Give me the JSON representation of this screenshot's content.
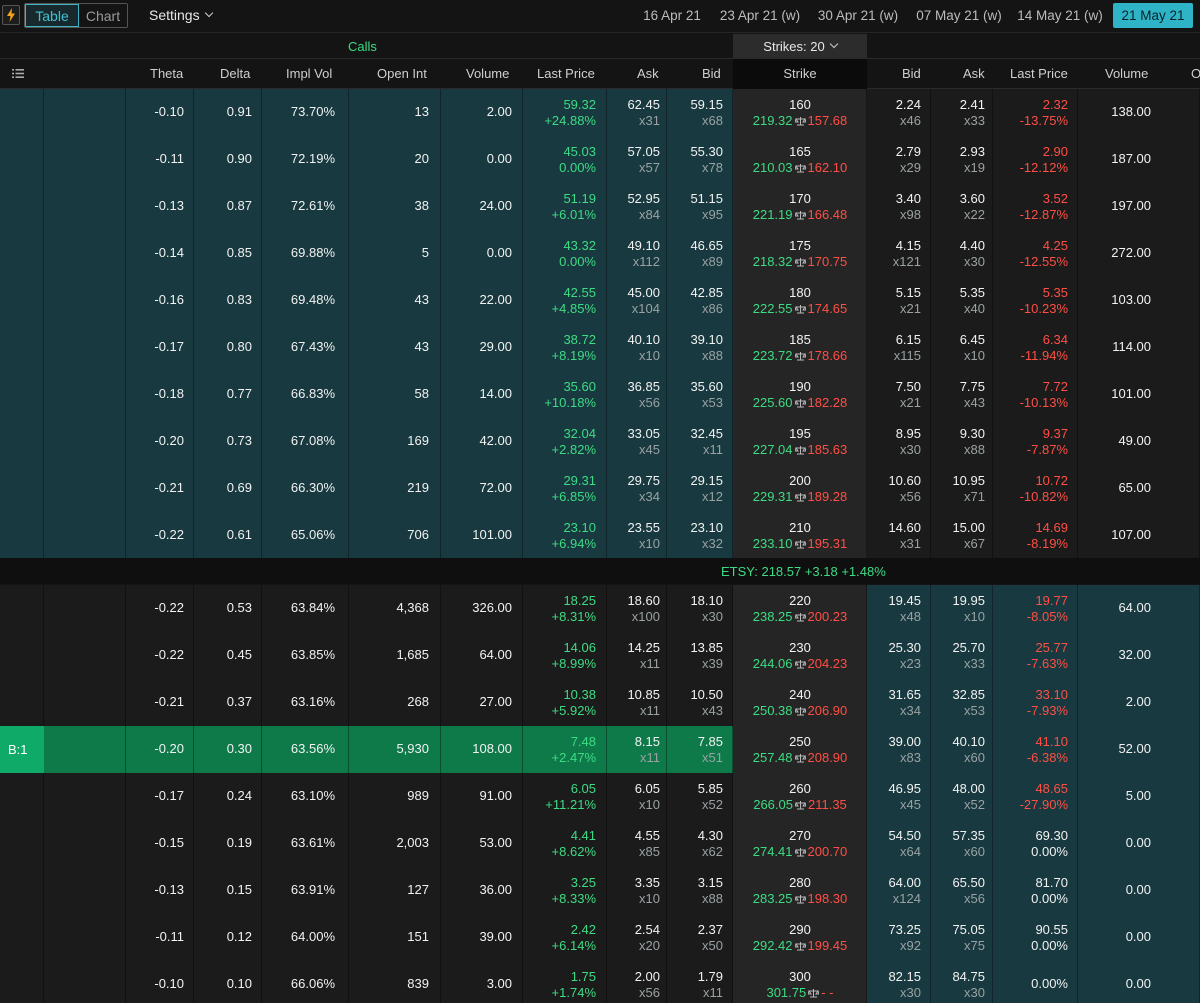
{
  "toolbar": {
    "tab_table": "Table",
    "tab_chart": "Chart",
    "settings_label": "Settings",
    "expirations": [
      "16 Apr 21",
      "23 Apr 21 (w)",
      "30 Apr 21 (w)",
      "07 May 21 (w)",
      "14 May 21 (w)",
      "21 May 21"
    ],
    "active_expiration": "21 May 21"
  },
  "chain": {
    "calls_label": "Calls",
    "strikes_label": "Strikes: 20",
    "columns": {
      "theta": "Theta",
      "delta": "Delta",
      "impl_vol": "Impl Vol",
      "open_int": "Open Int",
      "volume": "Volume",
      "last_price": "Last Price",
      "ask": "Ask",
      "bid": "Bid",
      "strike": "Strike",
      "put_bid": "Bid",
      "put_ask": "Ask",
      "put_last": "Last Price",
      "put_volume": "Volume",
      "overflow": "O"
    },
    "underlying": "ETSY:  218.57 +3.18 +1.48%",
    "selected_badge": "B:1",
    "rows": [
      {
        "theta": "-0.10",
        "delta": "0.91",
        "iv": "73.70%",
        "oi": "13",
        "vol": "2.00",
        "last": "59.32",
        "chg": "+24.88%",
        "ask": "62.45",
        "ask_sz": "x31",
        "bid": "59.15",
        "bid_sz": "x68",
        "strike": "160",
        "be_call": "219.32",
        "be_put": "157.68",
        "pbid": "2.24",
        "pbid_sz": "x46",
        "pask": "2.41",
        "pask_sz": "x33",
        "plast": "2.32",
        "pchg": "-13.75%",
        "pvol": "138.00"
      },
      {
        "theta": "-0.11",
        "delta": "0.90",
        "iv": "72.19%",
        "oi": "20",
        "vol": "0.00",
        "last": "45.03",
        "chg": "0.00%",
        "ask": "57.05",
        "ask_sz": "x57",
        "bid": "55.30",
        "bid_sz": "x78",
        "strike": "165",
        "be_call": "210.03",
        "be_put": "162.10",
        "pbid": "2.79",
        "pbid_sz": "x29",
        "pask": "2.93",
        "pask_sz": "x19",
        "plast": "2.90",
        "pchg": "-12.12%",
        "pvol": "187.00"
      },
      {
        "theta": "-0.13",
        "delta": "0.87",
        "iv": "72.61%",
        "oi": "38",
        "vol": "24.00",
        "last": "51.19",
        "chg": "+6.01%",
        "ask": "52.95",
        "ask_sz": "x84",
        "bid": "51.15",
        "bid_sz": "x95",
        "strike": "170",
        "be_call": "221.19",
        "be_put": "166.48",
        "pbid": "3.40",
        "pbid_sz": "x98",
        "pask": "3.60",
        "pask_sz": "x22",
        "plast": "3.52",
        "pchg": "-12.87%",
        "pvol": "197.00"
      },
      {
        "theta": "-0.14",
        "delta": "0.85",
        "iv": "69.88%",
        "oi": "5",
        "vol": "0.00",
        "last": "43.32",
        "chg": "0.00%",
        "ask": "49.10",
        "ask_sz": "x112",
        "bid": "46.65",
        "bid_sz": "x89",
        "strike": "175",
        "be_call": "218.32",
        "be_put": "170.75",
        "pbid": "4.15",
        "pbid_sz": "x121",
        "pask": "4.40",
        "pask_sz": "x30",
        "plast": "4.25",
        "pchg": "-12.55%",
        "pvol": "272.00"
      },
      {
        "theta": "-0.16",
        "delta": "0.83",
        "iv": "69.48%",
        "oi": "43",
        "vol": "22.00",
        "last": "42.55",
        "chg": "+4.85%",
        "ask": "45.00",
        "ask_sz": "x104",
        "bid": "42.85",
        "bid_sz": "x86",
        "strike": "180",
        "be_call": "222.55",
        "be_put": "174.65",
        "pbid": "5.15",
        "pbid_sz": "x21",
        "pask": "5.35",
        "pask_sz": "x40",
        "plast": "5.35",
        "pchg": "-10.23%",
        "pvol": "103.00"
      },
      {
        "theta": "-0.17",
        "delta": "0.80",
        "iv": "67.43%",
        "oi": "43",
        "vol": "29.00",
        "last": "38.72",
        "chg": "+8.19%",
        "ask": "40.10",
        "ask_sz": "x10",
        "bid": "39.10",
        "bid_sz": "x88",
        "strike": "185",
        "be_call": "223.72",
        "be_put": "178.66",
        "pbid": "6.15",
        "pbid_sz": "x115",
        "pask": "6.45",
        "pask_sz": "x10",
        "plast": "6.34",
        "pchg": "-11.94%",
        "pvol": "114.00"
      },
      {
        "theta": "-0.18",
        "delta": "0.77",
        "iv": "66.83%",
        "oi": "58",
        "vol": "14.00",
        "last": "35.60",
        "chg": "+10.18%",
        "ask": "36.85",
        "ask_sz": "x56",
        "bid": "35.60",
        "bid_sz": "x53",
        "strike": "190",
        "be_call": "225.60",
        "be_put": "182.28",
        "pbid": "7.50",
        "pbid_sz": "x21",
        "pask": "7.75",
        "pask_sz": "x43",
        "plast": "7.72",
        "pchg": "-10.13%",
        "pvol": "101.00"
      },
      {
        "theta": "-0.20",
        "delta": "0.73",
        "iv": "67.08%",
        "oi": "169",
        "vol": "42.00",
        "last": "32.04",
        "chg": "+2.82%",
        "ask": "33.05",
        "ask_sz": "x45",
        "bid": "32.45",
        "bid_sz": "x11",
        "strike": "195",
        "be_call": "227.04",
        "be_put": "185.63",
        "pbid": "8.95",
        "pbid_sz": "x30",
        "pask": "9.30",
        "pask_sz": "x88",
        "plast": "9.37",
        "pchg": "-7.87%",
        "pvol": "49.00"
      },
      {
        "theta": "-0.21",
        "delta": "0.69",
        "iv": "66.30%",
        "oi": "219",
        "vol": "72.00",
        "last": "29.31",
        "chg": "+6.85%",
        "ask": "29.75",
        "ask_sz": "x34",
        "bid": "29.15",
        "bid_sz": "x12",
        "strike": "200",
        "be_call": "229.31",
        "be_put": "189.28",
        "pbid": "10.60",
        "pbid_sz": "x56",
        "pask": "10.95",
        "pask_sz": "x71",
        "plast": "10.72",
        "pchg": "-10.82%",
        "pvol": "65.00"
      },
      {
        "theta": "-0.22",
        "delta": "0.61",
        "iv": "65.06%",
        "oi": "706",
        "vol": "101.00",
        "last": "23.10",
        "chg": "+6.94%",
        "ask": "23.55",
        "ask_sz": "x10",
        "bid": "23.10",
        "bid_sz": "x32",
        "strike": "210",
        "be_call": "233.10",
        "be_put": "195.31",
        "pbid": "14.60",
        "pbid_sz": "x31",
        "pask": "15.00",
        "pask_sz": "x67",
        "plast": "14.69",
        "pchg": "-8.19%",
        "pvol": "107.00"
      },
      {
        "theta": "-0.22",
        "delta": "0.53",
        "iv": "63.84%",
        "oi": "4,368",
        "vol": "326.00",
        "last": "18.25",
        "chg": "+8.31%",
        "ask": "18.60",
        "ask_sz": "x100",
        "bid": "18.10",
        "bid_sz": "x30",
        "strike": "220",
        "be_call": "238.25",
        "be_put": "200.23",
        "pbid": "19.45",
        "pbid_sz": "x48",
        "pask": "19.95",
        "pask_sz": "x10",
        "plast": "19.77",
        "pchg": "-8.05%",
        "pvol": "64.00"
      },
      {
        "theta": "-0.22",
        "delta": "0.45",
        "iv": "63.85%",
        "oi": "1,685",
        "vol": "64.00",
        "last": "14.06",
        "chg": "+8.99%",
        "ask": "14.25",
        "ask_sz": "x11",
        "bid": "13.85",
        "bid_sz": "x39",
        "strike": "230",
        "be_call": "244.06",
        "be_put": "204.23",
        "pbid": "25.30",
        "pbid_sz": "x23",
        "pask": "25.70",
        "pask_sz": "x33",
        "plast": "25.77",
        "pchg": "-7.63%",
        "pvol": "32.00"
      },
      {
        "theta": "-0.21",
        "delta": "0.37",
        "iv": "63.16%",
        "oi": "268",
        "vol": "27.00",
        "last": "10.38",
        "chg": "+5.92%",
        "ask": "10.85",
        "ask_sz": "x11",
        "bid": "10.50",
        "bid_sz": "x43",
        "strike": "240",
        "be_call": "250.38",
        "be_put": "206.90",
        "pbid": "31.65",
        "pbid_sz": "x34",
        "pask": "32.85",
        "pask_sz": "x53",
        "plast": "33.10",
        "pchg": "-7.93%",
        "pvol": "2.00"
      },
      {
        "theta": "-0.20",
        "delta": "0.30",
        "iv": "63.56%",
        "oi": "5,930",
        "vol": "108.00",
        "last": "7.48",
        "chg": "+2.47%",
        "ask": "8.15",
        "ask_sz": "x11",
        "bid": "7.85",
        "bid_sz": "x51",
        "strike": "250",
        "be_call": "257.48",
        "be_put": "208.90",
        "pbid": "39.00",
        "pbid_sz": "x83",
        "pask": "40.10",
        "pask_sz": "x60",
        "plast": "41.10",
        "pchg": "-6.38%",
        "pvol": "52.00"
      },
      {
        "theta": "-0.17",
        "delta": "0.24",
        "iv": "63.10%",
        "oi": "989",
        "vol": "91.00",
        "last": "6.05",
        "chg": "+11.21%",
        "ask": "6.05",
        "ask_sz": "x10",
        "bid": "5.85",
        "bid_sz": "x52",
        "strike": "260",
        "be_call": "266.05",
        "be_put": "211.35",
        "pbid": "46.95",
        "pbid_sz": "x45",
        "pask": "48.00",
        "pask_sz": "x52",
        "plast": "48.65",
        "pchg": "-27.90%",
        "pvol": "5.00"
      },
      {
        "theta": "-0.15",
        "delta": "0.19",
        "iv": "63.61%",
        "oi": "2,003",
        "vol": "53.00",
        "last": "4.41",
        "chg": "+8.62%",
        "ask": "4.55",
        "ask_sz": "x85",
        "bid": "4.30",
        "bid_sz": "x62",
        "strike": "270",
        "be_call": "274.41",
        "be_put": "200.70",
        "pbid": "54.50",
        "pbid_sz": "x64",
        "pask": "57.35",
        "pask_sz": "x60",
        "plast": "69.30",
        "pchg": "0.00%",
        "pvol": "0.00"
      },
      {
        "theta": "-0.13",
        "delta": "0.15",
        "iv": "63.91%",
        "oi": "127",
        "vol": "36.00",
        "last": "3.25",
        "chg": "+8.33%",
        "ask": "3.35",
        "ask_sz": "x10",
        "bid": "3.15",
        "bid_sz": "x88",
        "strike": "280",
        "be_call": "283.25",
        "be_put": "198.30",
        "pbid": "64.00",
        "pbid_sz": "x124",
        "pask": "65.50",
        "pask_sz": "x56",
        "plast": "81.70",
        "pchg": "0.00%",
        "pvol": "0.00"
      },
      {
        "theta": "-0.11",
        "delta": "0.12",
        "iv": "64.00%",
        "oi": "151",
        "vol": "39.00",
        "last": "2.42",
        "chg": "+6.14%",
        "ask": "2.54",
        "ask_sz": "x20",
        "bid": "2.37",
        "bid_sz": "x50",
        "strike": "290",
        "be_call": "292.42",
        "be_put": "199.45",
        "pbid": "73.25",
        "pbid_sz": "x92",
        "pask": "75.05",
        "pask_sz": "x75",
        "plast": "90.55",
        "pchg": "0.00%",
        "pvol": "0.00"
      },
      {
        "theta": "-0.10",
        "delta": "0.10",
        "iv": "66.06%",
        "oi": "839",
        "vol": "3.00",
        "last": "1.75",
        "chg": "+1.74%",
        "ask": "2.00",
        "ask_sz": "x56",
        "bid": "1.79",
        "bid_sz": "x11",
        "strike": "300",
        "be_call": "301.75",
        "be_put": "- -",
        "pbid": "82.15",
        "pbid_sz": "x30",
        "pask": "84.75",
        "pask_sz": "x30",
        "plast": "",
        "pchg": "0.00%",
        "pvol": "0.00"
      }
    ]
  },
  "colors": {
    "accent": "#2eb3c7",
    "positive": "#3ddc84",
    "negative": "#ff4f45",
    "itm_background": "#17393f",
    "otm_background": "#1b1b1b",
    "selected_background": "#0e7a4a"
  }
}
